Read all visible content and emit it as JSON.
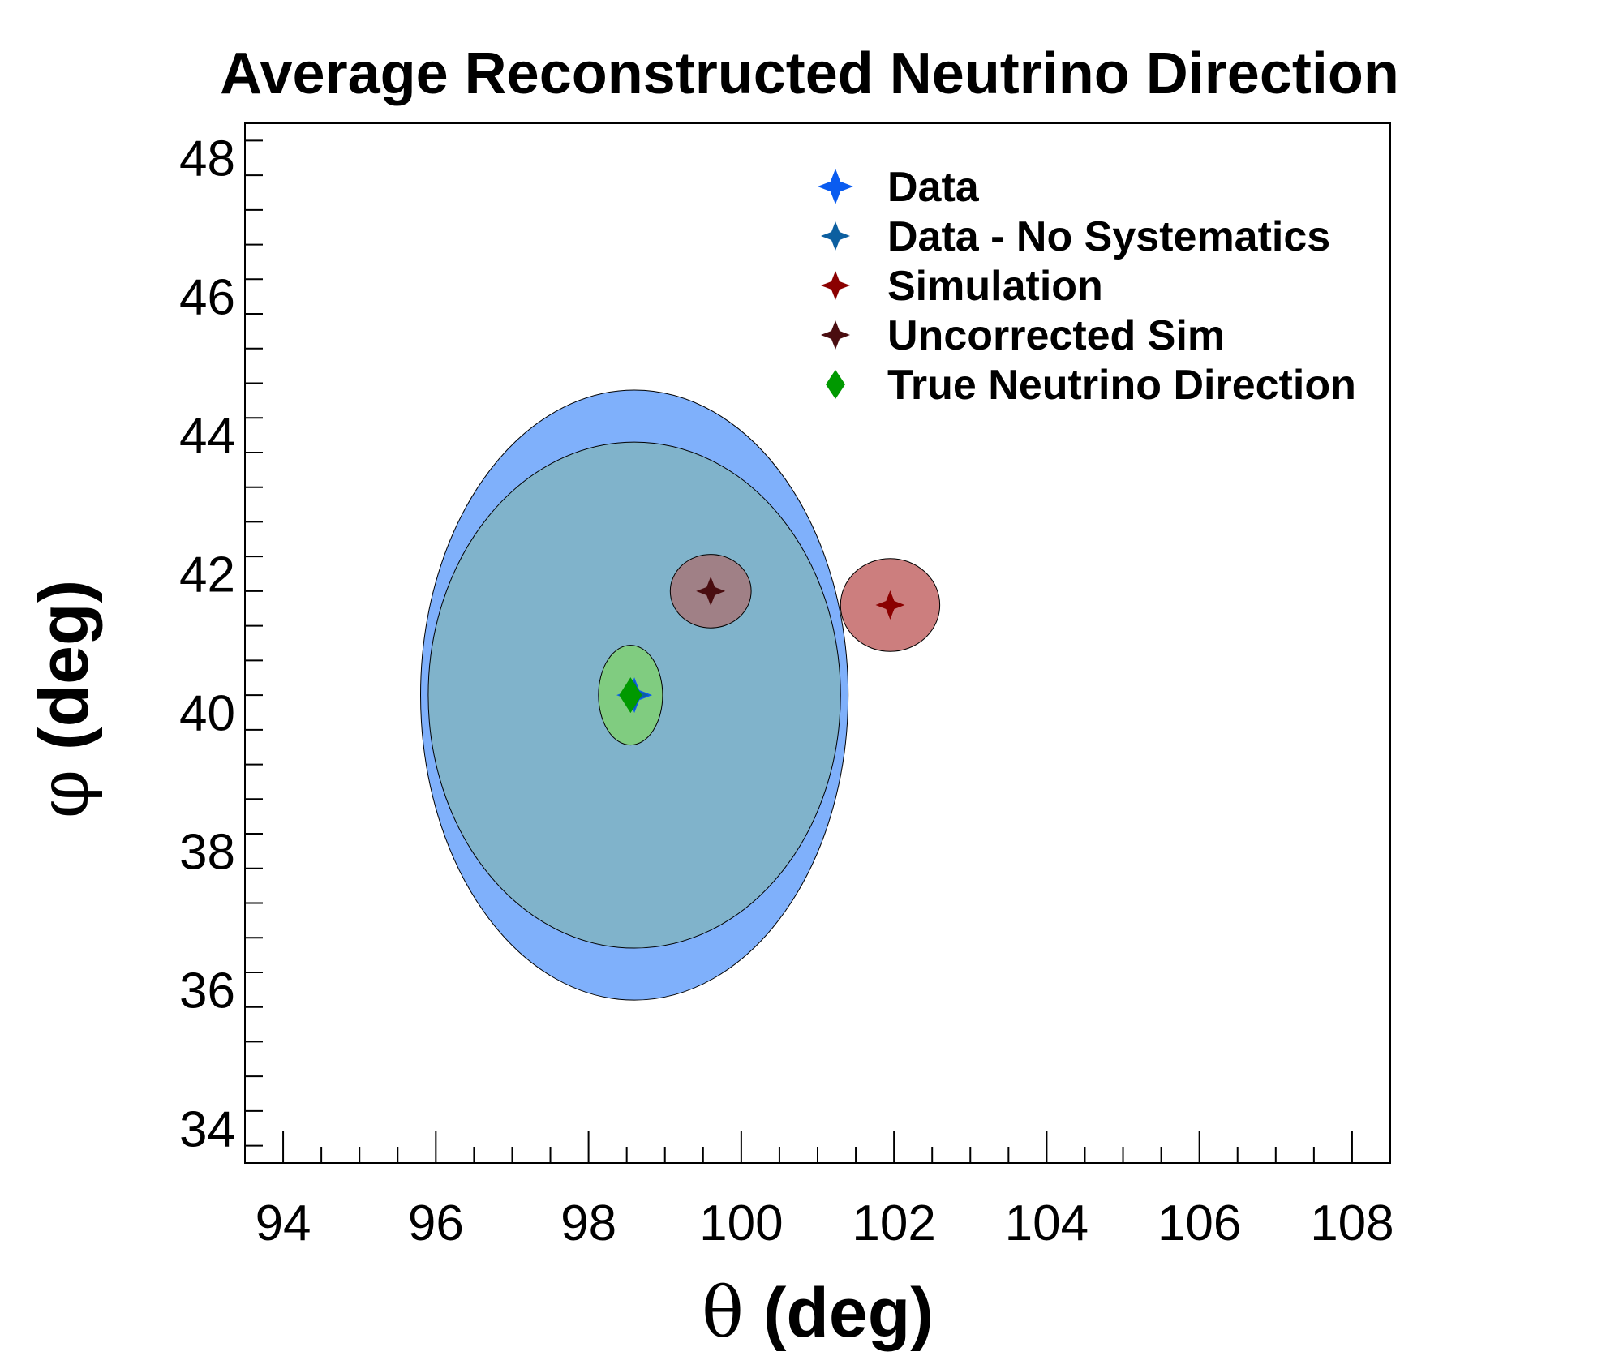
{
  "chart_data": {
    "type": "scatter",
    "title": "Average Reconstructed Neutrino Direction",
    "xlabel": "θ (deg)",
    "ylabel": "φ (deg)",
    "xlim": [
      93.5,
      108.5
    ],
    "ylim": [
      33.5,
      48.5
    ],
    "x_ticks": [
      94,
      96,
      98,
      100,
      102,
      104,
      106,
      108
    ],
    "y_ticks": [
      34,
      36,
      38,
      40,
      42,
      44,
      46,
      48
    ],
    "grid": false,
    "legend_position": "top-right",
    "series": [
      {
        "name": "Data",
        "marker": "star4",
        "color": "#0a5cf0",
        "x": 98.6,
        "y": 40.25,
        "ellipse": {
          "rx": 2.8,
          "ry": 4.4,
          "fill": "#7fb0fb"
        }
      },
      {
        "name": "Data - No Systematics",
        "marker": "star4",
        "color": "#0c5fa0",
        "x": 98.6,
        "y": 40.25,
        "ellipse": {
          "rx": 2.7,
          "ry": 3.65,
          "fill": "#80b3cb"
        }
      },
      {
        "name": "Simulation",
        "marker": "star4",
        "color": "#8b0000",
        "x": 101.95,
        "y": 41.55,
        "ellipse": {
          "rx": 0.65,
          "ry": 0.67,
          "fill": "#cc7e7e"
        }
      },
      {
        "name": "Uncorrected Sim",
        "marker": "star4",
        "color": "#4a0d10",
        "x": 99.6,
        "y": 41.75,
        "ellipse": {
          "rx": 0.53,
          "ry": 0.53,
          "fill": "#a08086"
        }
      },
      {
        "name": "True Neutrino Direction",
        "marker": "diamond",
        "color": "#009900",
        "x": 98.55,
        "y": 40.25,
        "ellipse": {
          "rx": 0.42,
          "ry": 0.72,
          "fill": "#80cc80"
        }
      }
    ]
  }
}
